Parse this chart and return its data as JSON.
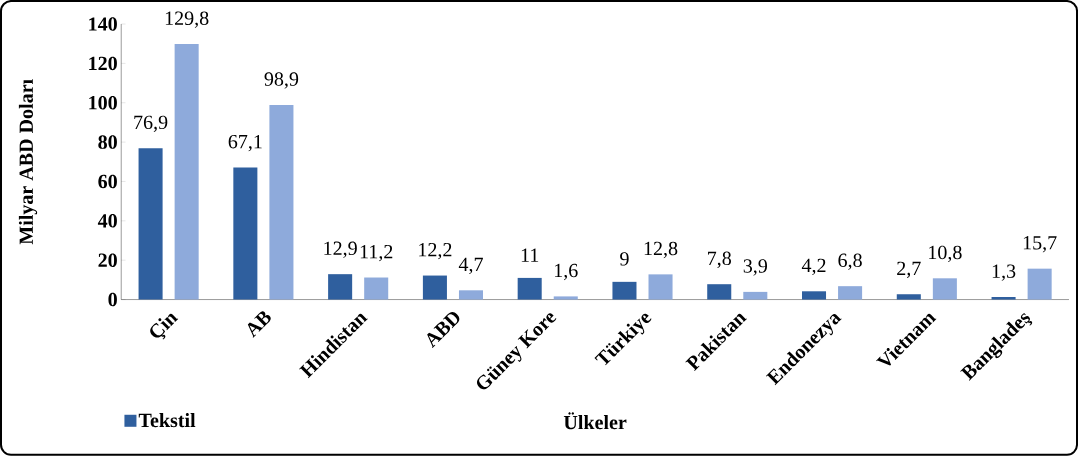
{
  "chart_data": {
    "type": "bar",
    "xlabel": "Ülkeler",
    "ylabel": "Milyar ABD Doları",
    "categories": [
      "Çin",
      "AB",
      "Hindistan",
      "ABD",
      "Güney Kore",
      "Türkiye",
      "Pakistan",
      "Endonezya",
      "Vietnam",
      "Bangladeş"
    ],
    "series": [
      {
        "name": "Tekstil",
        "color": "#2f5f9e",
        "values": [
          76.9,
          67.1,
          12.9,
          12.2,
          11,
          9,
          7.8,
          4.2,
          2.7,
          1.3
        ],
        "value_labels": [
          "76,9",
          "67,1",
          "12,9",
          "12,2",
          "11",
          "9",
          "7,8",
          "4,2",
          "2,7",
          "1,3"
        ]
      },
      {
        "color": "#8eaadb",
        "values": [
          129.8,
          98.9,
          11.2,
          4.7,
          1.6,
          12.8,
          3.9,
          6.8,
          10.8,
          15.7
        ],
        "value_labels": [
          "129,8",
          "98,9",
          "11,2",
          "4,7",
          "1,6",
          "12,8",
          "3,9",
          "6,8",
          "10,8",
          "15,7"
        ]
      }
    ],
    "ylim": [
      0,
      140
    ],
    "yticks": [
      0,
      20,
      40,
      60,
      80,
      100,
      120,
      140
    ],
    "grid": false,
    "legend": "bottom left"
  }
}
